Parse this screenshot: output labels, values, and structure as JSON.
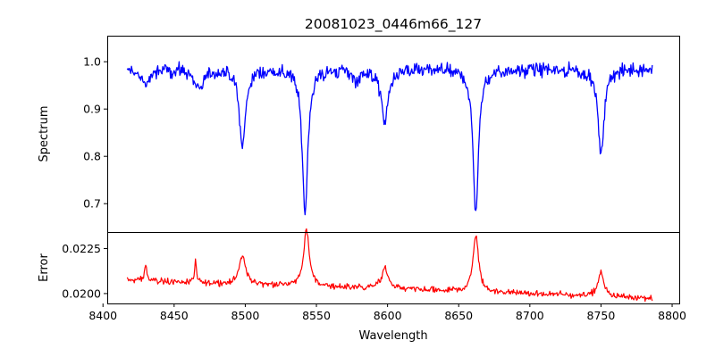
{
  "chart_data": {
    "type": "line",
    "title": "20081023_0446m66_127",
    "xlabel": "Wavelength",
    "xlim": [
      8403,
      8805
    ],
    "xticks": [
      8400,
      8450,
      8500,
      8550,
      8600,
      8650,
      8700,
      8750,
      8800
    ],
    "xtick_labels": [
      "8400",
      "8450",
      "8500",
      "8550",
      "8600",
      "8650",
      "8700",
      "8750",
      "8800"
    ],
    "panels": [
      {
        "name": "spectrum",
        "ylabel": "Spectrum",
        "ylim": [
          0.64,
          1.055
        ],
        "yticks": [
          0.7,
          0.8,
          0.9,
          1.0
        ],
        "ytick_labels": [
          "0.7",
          "0.8",
          "0.9",
          "1.0"
        ],
        "series": [
          {
            "name": "Spectrum",
            "color": "#0000ff"
          }
        ],
        "continuum": 0.985,
        "noise": 0.022,
        "features": [
          {
            "center": 8498,
            "depth": 0.165,
            "width": 2.6
          },
          {
            "center": 8542,
            "depth": 0.305,
            "width": 2.3
          },
          {
            "center": 8598,
            "depth": 0.11,
            "width": 3.0
          },
          {
            "center": 8662,
            "depth": 0.305,
            "width": 2.3
          },
          {
            "center": 8750,
            "depth": 0.18,
            "width": 2.6
          },
          {
            "center": 8468,
            "depth": 0.04,
            "width": 4.0
          },
          {
            "center": 8430,
            "depth": 0.03,
            "width": 4.0
          },
          {
            "center": 8578,
            "depth": 0.02,
            "width": 3.0
          }
        ]
      },
      {
        "name": "error",
        "ylabel": "Error",
        "ylim": [
          0.01945,
          0.02342
        ],
        "yticks": [
          0.02,
          0.0225
        ],
        "ytick_labels": [
          "0.0200",
          "0.0225"
        ],
        "series": [
          {
            "name": "Error",
            "color": "#ff0000"
          }
        ],
        "baseline_start": 0.02075,
        "baseline_end": 0.01975,
        "noise": 0.00025,
        "peaks": [
          {
            "center": 8498,
            "height": 0.0016,
            "width": 2.6
          },
          {
            "center": 8543,
            "height": 0.0032,
            "width": 2.3
          },
          {
            "center": 8598,
            "height": 0.0011,
            "width": 3.0
          },
          {
            "center": 8662,
            "height": 0.0032,
            "width": 2.3
          },
          {
            "center": 8750,
            "height": 0.0013,
            "width": 2.6
          },
          {
            "center": 8430,
            "height": 0.001,
            "width": 0.8
          },
          {
            "center": 8465,
            "height": 0.0012,
            "width": 0.6
          }
        ]
      }
    ],
    "x_start": 8417,
    "x_end": 8786,
    "x_step": 0.5
  }
}
